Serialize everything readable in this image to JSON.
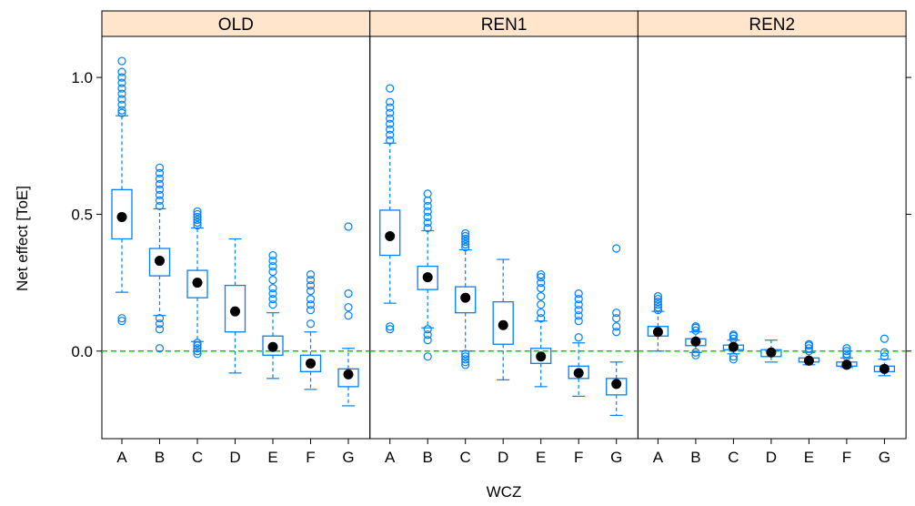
{
  "chart_data": {
    "type": "box",
    "xlabel": "WCZ",
    "ylabel": "Net effect [ToE]",
    "categories": [
      "A",
      "B",
      "C",
      "D",
      "E",
      "F",
      "G"
    ],
    "y_ticks": [
      0.0,
      0.5,
      1.0
    ],
    "y_tick_labels": [
      "0.0",
      "0.5",
      "1.0"
    ],
    "ylim": [
      -0.32,
      1.15
    ],
    "reference_line": 0.0,
    "colors": {
      "box": "#0080ff",
      "median": "#000000",
      "reference": "#00cc00",
      "strip": "#ffe5cc"
    },
    "panels": [
      {
        "name": "OLD",
        "boxes": [
          {
            "cat": "A",
            "lw": 0.215,
            "q1": 0.41,
            "med": 0.49,
            "q3": 0.59,
            "uw": 0.86,
            "out_lo": [
              0.11,
              0.12
            ],
            "out_hi": [
              0.87,
              0.88,
              0.9,
              0.92,
              0.94,
              0.96,
              0.98,
              1.0,
              1.02,
              1.06
            ]
          },
          {
            "cat": "B",
            "lw": 0.13,
            "q1": 0.275,
            "med": 0.33,
            "q3": 0.375,
            "uw": 0.52,
            "out_lo": [
              0.01,
              0.08,
              0.1,
              0.12
            ],
            "out_hi": [
              0.53,
              0.55,
              0.57,
              0.59,
              0.61,
              0.63,
              0.65,
              0.67
            ]
          },
          {
            "cat": "C",
            "lw": 0.035,
            "q1": 0.195,
            "med": 0.25,
            "q3": 0.295,
            "uw": 0.45,
            "out_lo": [
              -0.01,
              0.0,
              0.01,
              0.02,
              0.03
            ],
            "out_hi": [
              0.46,
              0.47,
              0.48,
              0.49,
              0.5,
              0.51
            ]
          },
          {
            "cat": "D",
            "lw": -0.08,
            "q1": 0.07,
            "med": 0.145,
            "q3": 0.24,
            "uw": 0.41,
            "out_lo": [],
            "out_hi": []
          },
          {
            "cat": "E",
            "lw": -0.1,
            "q1": -0.015,
            "med": 0.015,
            "q3": 0.055,
            "uw": 0.14,
            "out_lo": [],
            "out_hi": [
              0.17,
              0.19,
              0.21,
              0.23,
              0.26,
              0.29,
              0.31,
              0.33,
              0.35
            ]
          },
          {
            "cat": "F",
            "lw": -0.14,
            "q1": -0.075,
            "med": -0.045,
            "q3": -0.015,
            "uw": 0.07,
            "out_lo": [],
            "out_hi": [
              0.1,
              0.15,
              0.17,
              0.19,
              0.22,
              0.24,
              0.26,
              0.28
            ]
          },
          {
            "cat": "G",
            "lw": -0.2,
            "q1": -0.13,
            "med": -0.085,
            "q3": -0.065,
            "uw": 0.01,
            "out_lo": [],
            "out_hi": [
              0.13,
              0.16,
              0.21,
              0.455
            ]
          }
        ]
      },
      {
        "name": "REN1",
        "boxes": [
          {
            "cat": "A",
            "lw": 0.175,
            "q1": 0.35,
            "med": 0.42,
            "q3": 0.515,
            "uw": 0.76,
            "out_lo": [
              0.08,
              0.09
            ],
            "out_hi": [
              0.77,
              0.79,
              0.81,
              0.83,
              0.85,
              0.87,
              0.89,
              0.91,
              0.96
            ]
          },
          {
            "cat": "B",
            "lw": 0.085,
            "q1": 0.225,
            "med": 0.27,
            "q3": 0.31,
            "uw": 0.44,
            "out_lo": [
              -0.02,
              0.04,
              0.06,
              0.08
            ],
            "out_hi": [
              0.45,
              0.47,
              0.49,
              0.51,
              0.53,
              0.55,
              0.575
            ]
          },
          {
            "cat": "C",
            "lw": 0.0,
            "q1": 0.14,
            "med": 0.195,
            "q3": 0.235,
            "uw": 0.37,
            "out_lo": [
              -0.05,
              -0.04,
              -0.03,
              -0.02,
              -0.01
            ],
            "out_hi": [
              0.38,
              0.39,
              0.4,
              0.41,
              0.42,
              0.43
            ]
          },
          {
            "cat": "D",
            "lw": -0.105,
            "q1": 0.025,
            "med": 0.095,
            "q3": 0.18,
            "uw": 0.335,
            "out_lo": [],
            "out_hi": []
          },
          {
            "cat": "E",
            "lw": -0.13,
            "q1": -0.045,
            "med": -0.02,
            "q3": 0.01,
            "uw": 0.11,
            "out_lo": [],
            "out_hi": [
              0.12,
              0.14,
              0.17,
              0.2,
              0.23,
              0.25,
              0.27,
              0.28
            ]
          },
          {
            "cat": "F",
            "lw": -0.165,
            "q1": -0.1,
            "med": -0.08,
            "q3": -0.055,
            "uw": 0.03,
            "out_lo": [],
            "out_hi": [
              0.05,
              0.11,
              0.13,
              0.15,
              0.17,
              0.19,
              0.21
            ]
          },
          {
            "cat": "G",
            "lw": -0.235,
            "q1": -0.16,
            "med": -0.12,
            "q3": -0.1,
            "uw": -0.04,
            "out_lo": [],
            "out_hi": [
              0.07,
              0.09,
              0.12,
              0.14,
              0.375
            ]
          }
        ]
      },
      {
        "name": "REN2",
        "boxes": [
          {
            "cat": "A",
            "lw": 0.0,
            "q1": 0.055,
            "med": 0.07,
            "q3": 0.09,
            "uw": 0.145,
            "out_lo": [],
            "out_hi": [
              0.15,
              0.16,
              0.17,
              0.18,
              0.19,
              0.2
            ]
          },
          {
            "cat": "B",
            "lw": -0.005,
            "q1": 0.02,
            "med": 0.035,
            "q3": 0.045,
            "uw": 0.07,
            "out_lo": [
              -0.015,
              -0.005
            ],
            "out_hi": [
              0.075,
              0.085,
              0.09
            ]
          },
          {
            "cat": "C",
            "lw": -0.01,
            "q1": 0.005,
            "med": 0.015,
            "q3": 0.022,
            "uw": 0.04,
            "out_lo": [
              -0.03,
              -0.02
            ],
            "out_hi": [
              0.045,
              0.055,
              0.06
            ]
          },
          {
            "cat": "D",
            "lw": -0.04,
            "q1": -0.02,
            "med": -0.005,
            "q3": 0.005,
            "uw": 0.04,
            "out_lo": [],
            "out_hi": []
          },
          {
            "cat": "E",
            "lw": -0.05,
            "q1": -0.04,
            "med": -0.035,
            "q3": -0.025,
            "uw": -0.005,
            "out_lo": [],
            "out_hi": [
              0.0,
              0.01,
              0.02,
              0.025
            ]
          },
          {
            "cat": "F",
            "lw": -0.06,
            "q1": -0.055,
            "med": -0.05,
            "q3": -0.04,
            "uw": -0.025,
            "out_lo": [],
            "out_hi": [
              -0.02,
              -0.01,
              0.0,
              0.01
            ]
          },
          {
            "cat": "G",
            "lw": -0.09,
            "q1": -0.075,
            "med": -0.065,
            "q3": -0.055,
            "uw": -0.03,
            "out_lo": [],
            "out_hi": [
              -0.02,
              -0.005,
              0.045
            ]
          }
        ]
      }
    ]
  }
}
